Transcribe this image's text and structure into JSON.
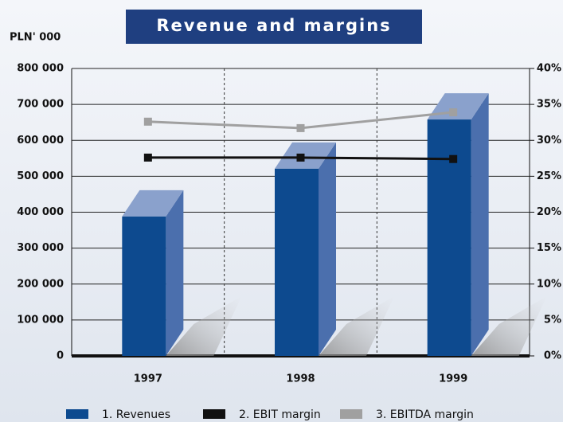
{
  "chart_data": {
    "type": "bar-line",
    "title": "Revenue and margins",
    "y_unit": "PLN' 000",
    "categories": [
      "1997",
      "1998",
      "1999"
    ],
    "series": [
      {
        "name": "1. Revenues",
        "color": "#0d4a8f",
        "values": [
          388000,
          521000,
          658000
        ]
      },
      {
        "name": "2. EBIT margin",
        "color": "#111111",
        "axis": "y2",
        "values": [
          27.6,
          27.6,
          27.4
        ]
      },
      {
        "name": "3. EBITDA margin",
        "color": "#a0a0a0",
        "axis": "y2",
        "values": [
          32.6,
          31.7,
          33.9
        ]
      }
    ],
    "ylim": [
      0,
      800000
    ],
    "yticks": [
      {
        "value": 0,
        "label": "0"
      },
      {
        "value": 100000,
        "label": "100 000"
      },
      {
        "value": 200000,
        "label": "200 000"
      },
      {
        "value": 300000,
        "label": "300 000"
      },
      {
        "value": 400000,
        "label": "400 000"
      },
      {
        "value": 500000,
        "label": "500 000"
      },
      {
        "value": 600000,
        "label": "600 000"
      },
      {
        "value": 700000,
        "label": "700 000"
      },
      {
        "value": 800000,
        "label": "800 000"
      }
    ],
    "y2lim": [
      0,
      40
    ],
    "y2ticks": [
      {
        "value": 0,
        "label": "0%"
      },
      {
        "value": 5,
        "label": "5%"
      },
      {
        "value": 10,
        "label": "10%"
      },
      {
        "value": 15,
        "label": "15%"
      },
      {
        "value": 20,
        "label": "20%"
      },
      {
        "value": 25,
        "label": "25%"
      },
      {
        "value": 30,
        "label": "30%"
      },
      {
        "value": 35,
        "label": "35%"
      },
      {
        "value": 40,
        "label": "40%"
      }
    ],
    "grid": true
  }
}
